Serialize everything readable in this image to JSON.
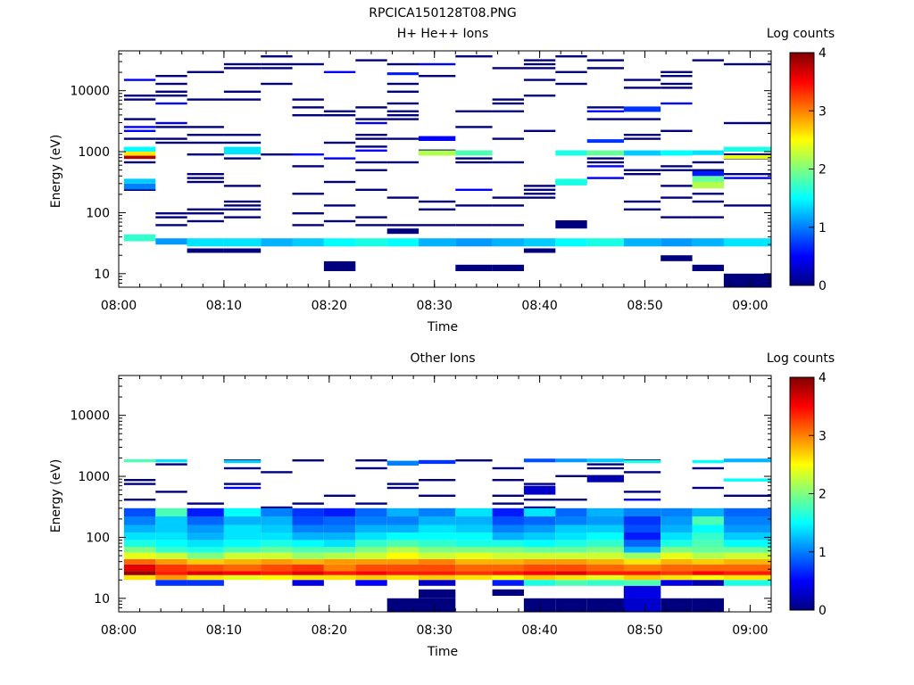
{
  "figure": {
    "title": "RPCICA150128T08.PNG"
  },
  "colormap": [
    "#00007f",
    "#0000ff",
    "#007fff",
    "#00ffff",
    "#7fff7f",
    "#ffff00",
    "#ff7f00",
    "#ff0000",
    "#7f0000"
  ],
  "chart_data": [
    {
      "type": "heatmap",
      "title": "H+ He++ Ions",
      "xlabel": "Time",
      "ylabel": "Energy (eV)",
      "colorbar_label": "Log counts",
      "x_scale": "time",
      "y_scale": "log",
      "xlim": [
        "08:00",
        "09:02"
      ],
      "ylim": [
        6,
        45000
      ],
      "clim": [
        0,
        4
      ],
      "xticks": [
        "08:00",
        "08:10",
        "08:20",
        "08:30",
        "08:40",
        "08:50",
        "09:00"
      ],
      "yticks": [
        "10",
        "100",
        "1000",
        "10000"
      ],
      "cticks": [
        "0",
        "1",
        "2",
        "3",
        "4"
      ],
      "time_bins": [
        "08:02",
        "08:05",
        "08:08",
        "08:12",
        "08:15",
        "08:18",
        "08:21",
        "08:24",
        "08:27",
        "08:30",
        "08:34",
        "08:37",
        "08:40",
        "08:43",
        "08:46",
        "08:50",
        "08:53",
        "08:56",
        "08:59"
      ],
      "cells": [
        {
          "t": 0,
          "e": [
            34,
            44
          ],
          "v": 1.7
        },
        {
          "t": 1,
          "e": [
            30,
            38
          ],
          "v": 1.1
        },
        {
          "t": 2,
          "e": [
            28,
            38
          ],
          "v": 1.4
        },
        {
          "t": 3,
          "e": [
            28,
            38
          ],
          "v": 1.4
        },
        {
          "t": 4,
          "e": [
            28,
            38
          ],
          "v": 1.2
        },
        {
          "t": 5,
          "e": [
            28,
            38
          ],
          "v": 1.3
        },
        {
          "t": 6,
          "e": [
            28,
            38
          ],
          "v": 1.5
        },
        {
          "t": 7,
          "e": [
            28,
            38
          ],
          "v": 1.6
        },
        {
          "t": 8,
          "e": [
            28,
            38
          ],
          "v": 1.5
        },
        {
          "t": 9,
          "e": [
            28,
            38
          ],
          "v": 1.2
        },
        {
          "t": 10,
          "e": [
            28,
            38
          ],
          "v": 1.1
        },
        {
          "t": 11,
          "e": [
            28,
            38
          ],
          "v": 1.2
        },
        {
          "t": 12,
          "e": [
            28,
            38
          ],
          "v": 1.3
        },
        {
          "t": 13,
          "e": [
            28,
            38
          ],
          "v": 1.5
        },
        {
          "t": 14,
          "e": [
            28,
            38
          ],
          "v": 1.6
        },
        {
          "t": 15,
          "e": [
            28,
            38
          ],
          "v": 1.2
        },
        {
          "t": 16,
          "e": [
            28,
            38
          ],
          "v": 1.1
        },
        {
          "t": 17,
          "e": [
            28,
            38
          ],
          "v": 1.2
        },
        {
          "t": 18,
          "e": [
            28,
            38
          ],
          "v": 1.4
        },
        {
          "t": 0,
          "e": [
            760,
            860
          ],
          "v": 3.8
        },
        {
          "t": 0,
          "e": [
            860,
            1000
          ],
          "v": 2.6
        },
        {
          "t": 0,
          "e": [
            1000,
            1200
          ],
          "v": 1.5
        },
        {
          "t": 0,
          "e": [
            240,
            300
          ],
          "v": 1.0
        },
        {
          "t": 0,
          "e": [
            300,
            360
          ],
          "v": 1.3
        },
        {
          "t": 3,
          "e": [
            900,
            1200
          ],
          "v": 1.4
        },
        {
          "t": 9,
          "e": [
            860,
            1050
          ],
          "v": 2.2
        },
        {
          "t": 10,
          "e": [
            860,
            1050
          ],
          "v": 1.8
        },
        {
          "t": 13,
          "e": [
            860,
            1050
          ],
          "v": 1.6
        },
        {
          "t": 14,
          "e": [
            860,
            1050
          ],
          "v": 1.9
        },
        {
          "t": 15,
          "e": [
            860,
            1050
          ],
          "v": 1.3
        },
        {
          "t": 16,
          "e": [
            860,
            1050
          ],
          "v": 1.5
        },
        {
          "t": 17,
          "e": [
            880,
            1050
          ],
          "v": 1.4
        },
        {
          "t": 18,
          "e": [
            760,
            880
          ],
          "v": 2.4
        },
        {
          "t": 18,
          "e": [
            1000,
            1200
          ],
          "v": 1.6
        },
        {
          "t": 13,
          "e": [
            280,
            360
          ],
          "v": 1.6
        },
        {
          "t": 17,
          "e": [
            250,
            320
          ],
          "v": 2.2
        },
        {
          "t": 17,
          "e": [
            320,
            400
          ],
          "v": 1.9
        },
        {
          "t": 17,
          "e": [
            400,
            480
          ],
          "v": 0.6
        },
        {
          "t": 9,
          "e": [
            1500,
            1800
          ],
          "v": 0.5
        },
        {
          "t": 14,
          "e": [
            1400,
            1600
          ],
          "v": 0.7
        },
        {
          "t": 8,
          "e": [
            18000,
            20000
          ],
          "v": 0.6
        },
        {
          "t": 15,
          "e": [
            4500,
            5500
          ],
          "v": 0.7
        },
        {
          "t": 6,
          "e": [
            11,
            16
          ],
          "v": 0.0
        },
        {
          "t": 10,
          "e": [
            11,
            14
          ],
          "v": 0.0
        },
        {
          "t": 11,
          "e": [
            11,
            14
          ],
          "v": 0.0
        },
        {
          "t": 18,
          "e": [
            6,
            10
          ],
          "v": 0.0
        },
        {
          "t": 17,
          "e": [
            11,
            14
          ],
          "v": 0.0
        },
        {
          "t": 16,
          "e": [
            16,
            20
          ],
          "v": 0.0
        },
        {
          "t": 13,
          "e": [
            55,
            75
          ],
          "v": 0.0
        },
        {
          "t": 8,
          "e": [
            45,
            55
          ],
          "v": 0.0
        },
        {
          "t": 2,
          "e": [
            22,
            26
          ],
          "v": 0.0
        },
        {
          "t": 3,
          "e": [
            22,
            26
          ],
          "v": 0.0
        },
        {
          "t": 12,
          "e": [
            22,
            26
          ],
          "v": 0.0
        }
      ]
    },
    {
      "type": "heatmap",
      "title": "Other Ions",
      "xlabel": "Time",
      "ylabel": "Energy (eV)",
      "colorbar_label": "Log counts",
      "x_scale": "time",
      "y_scale": "log",
      "xlim": [
        "08:00",
        "09:02"
      ],
      "ylim": [
        6,
        45000
      ],
      "clim": [
        0,
        4
      ],
      "xticks": [
        "08:00",
        "08:10",
        "08:20",
        "08:30",
        "08:40",
        "08:50",
        "09:00"
      ],
      "yticks": [
        "10",
        "100",
        "1000",
        "10000"
      ],
      "cticks": [
        "0",
        "1",
        "2",
        "3",
        "4"
      ],
      "time_bins": [
        "08:02",
        "08:05",
        "08:08",
        "08:12",
        "08:15",
        "08:18",
        "08:21",
        "08:24",
        "08:27",
        "08:30",
        "08:34",
        "08:37",
        "08:40",
        "08:43",
        "08:46",
        "08:50",
        "08:53",
        "08:56",
        "08:59"
      ],
      "profile": {
        "energy_edges": [
          10,
          16,
          20,
          24,
          28,
          36,
          44,
          56,
          70,
          90,
          120,
          160,
          220,
          300
        ],
        "values": [
          [
            null,
            null,
            2.6,
            3.9,
            3.6,
            3.1,
            2.4,
            2.0,
            1.6,
            1.4,
            1.2,
            1.0,
            0.8
          ],
          [
            null,
            0.7,
            2.9,
            3.4,
            3.3,
            2.9,
            2.3,
            1.7,
            1.5,
            1.4,
            1.3,
            1.3,
            1.8
          ],
          [
            null,
            0.7,
            2.6,
            3.6,
            3.2,
            2.7,
            2.0,
            1.6,
            1.4,
            1.2,
            1.1,
            0.9,
            0.6
          ],
          [
            null,
            null,
            2.4,
            3.5,
            3.1,
            2.8,
            2.3,
            1.8,
            1.5,
            1.4,
            1.4,
            1.2,
            1.5
          ],
          [
            null,
            null,
            2.5,
            3.4,
            3.2,
            2.9,
            2.3,
            1.9,
            1.6,
            1.4,
            1.3,
            1.2,
            1.0
          ],
          [
            null,
            0.4,
            2.6,
            3.6,
            3.3,
            2.8,
            2.1,
            1.8,
            1.5,
            1.2,
            1.0,
            0.8,
            0.7
          ],
          [
            null,
            null,
            2.6,
            3.4,
            3.0,
            2.9,
            2.2,
            1.8,
            1.4,
            1.2,
            1.0,
            0.9,
            0.6
          ],
          [
            null,
            0.5,
            2.7,
            3.5,
            3.2,
            2.9,
            2.3,
            2.0,
            1.7,
            1.4,
            1.2,
            1.0,
            0.9
          ],
          [
            null,
            null,
            2.6,
            3.4,
            3.2,
            2.9,
            2.5,
            2.2,
            1.8,
            1.5,
            1.2,
            1.0,
            1.2
          ],
          [
            null,
            0.3,
            2.7,
            3.4,
            3.2,
            3.0,
            2.3,
            2.0,
            1.7,
            1.5,
            1.4,
            1.2,
            1.0
          ],
          [
            null,
            null,
            2.6,
            3.3,
            3.1,
            2.8,
            2.4,
            2.0,
            1.6,
            1.5,
            1.3,
            1.2,
            1.4
          ],
          [
            null,
            0.6,
            2.5,
            3.4,
            3.1,
            2.8,
            2.3,
            2.0,
            1.6,
            1.2,
            1.0,
            0.8,
            0.6
          ],
          [
            null,
            1.6,
            2.7,
            3.5,
            3.2,
            2.9,
            2.3,
            1.9,
            1.5,
            1.3,
            1.1,
            0.9,
            1.4
          ],
          [
            null,
            1.8,
            2.6,
            3.6,
            3.2,
            2.9,
            2.3,
            1.9,
            1.6,
            1.4,
            1.3,
            1.0,
            0.9
          ],
          [
            null,
            1.7,
            2.4,
            3.4,
            3.1,
            2.8,
            2.3,
            2.0,
            1.7,
            1.5,
            1.3,
            1.1,
            1.2
          ],
          [
            0.7,
            1.8,
            2.7,
            3.4,
            3.0,
            2.6,
            2.1,
            1.2,
            0.9,
            0.6,
            0.8,
            0.7,
            1.0
          ],
          [
            null,
            0.4,
            2.6,
            3.3,
            3.1,
            2.8,
            2.4,
            2.0,
            1.6,
            1.4,
            1.2,
            1.1,
            1.0
          ],
          [
            null,
            0.2,
            2.5,
            3.5,
            3.1,
            2.7,
            2.2,
            1.9,
            1.8,
            1.7,
            1.5,
            1.8,
            1.2
          ],
          [
            null,
            1.6,
            2.6,
            3.4,
            3.1,
            2.8,
            2.3,
            1.9,
            1.5,
            1.3,
            1.1,
            1.0,
            0.9
          ]
        ]
      },
      "cells": [
        {
          "t": 8,
          "e": [
            6,
            10
          ],
          "v": 0.0
        },
        {
          "t": 9,
          "e": [
            6,
            10
          ],
          "v": 0.0
        },
        {
          "t": 9,
          "e": [
            10,
            14
          ],
          "v": 0.0
        },
        {
          "t": 11,
          "e": [
            11,
            14
          ],
          "v": 0.0
        },
        {
          "t": 12,
          "e": [
            6,
            10
          ],
          "v": 0.0
        },
        {
          "t": 13,
          "e": [
            6,
            10
          ],
          "v": 0.0
        },
        {
          "t": 14,
          "e": [
            6,
            10
          ],
          "v": 0.0
        },
        {
          "t": 15,
          "e": [
            6,
            10
          ],
          "v": 0.3
        },
        {
          "t": 15,
          "e": [
            10,
            16
          ],
          "v": 0.4
        },
        {
          "t": 16,
          "e": [
            6,
            10
          ],
          "v": 0.0
        },
        {
          "t": 17,
          "e": [
            6,
            10
          ],
          "v": 0.0
        },
        {
          "t": 0,
          "e": [
            1700,
            1900
          ],
          "v": 1.8
        },
        {
          "t": 1,
          "e": [
            1700,
            1900
          ],
          "v": 1.4
        },
        {
          "t": 3,
          "e": [
            1650,
            1850
          ],
          "v": 1.3
        },
        {
          "t": 8,
          "e": [
            1500,
            1800
          ],
          "v": 1.0
        },
        {
          "t": 9,
          "e": [
            1600,
            1850
          ],
          "v": 0.7
        },
        {
          "t": 12,
          "e": [
            1700,
            1950
          ],
          "v": 0.8
        },
        {
          "t": 13,
          "e": [
            1700,
            1950
          ],
          "v": 1.1
        },
        {
          "t": 14,
          "e": [
            1700,
            1950
          ],
          "v": 1.3
        },
        {
          "t": 15,
          "e": [
            1650,
            1850
          ],
          "v": 1.6
        },
        {
          "t": 17,
          "e": [
            1650,
            1850
          ],
          "v": 1.5
        },
        {
          "t": 18,
          "e": [
            1700,
            1950
          ],
          "v": 1.2
        },
        {
          "t": 12,
          "e": [
            500,
            700
          ],
          "v": 0.3
        },
        {
          "t": 14,
          "e": [
            800,
            1000
          ],
          "v": 0.2
        },
        {
          "t": 18,
          "e": [
            820,
            920
          ],
          "v": 1.5
        }
      ]
    }
  ]
}
